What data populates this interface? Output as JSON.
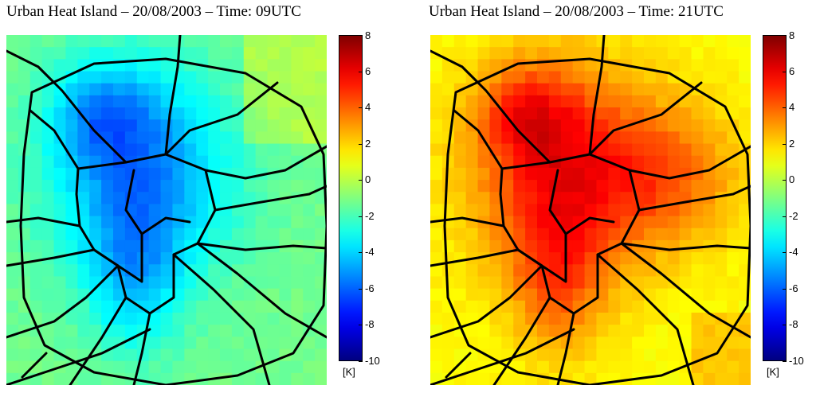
{
  "panels": [
    {
      "id": "left",
      "title": "Urban Heat Island – 20/08/2003 – Time: 09UTC",
      "colorbar": {
        "ticks": [
          "8",
          "6",
          "4",
          "2",
          "0",
          "-2",
          "-4",
          "-6",
          "-8",
          "-10"
        ],
        "unit": "[K]",
        "range": [
          -10,
          8
        ],
        "colormap": "jet"
      },
      "heat_anomaly_trend": "city center coolest (about -5 K), outskirts near -1 K"
    },
    {
      "id": "right",
      "title": "Urban Heat Island – 20/08/2003 – Time: 21UTC",
      "colorbar": {
        "ticks": [
          "8",
          "6",
          "4",
          "2",
          "0",
          "-2",
          "-4",
          "-6",
          "-8",
          "-10"
        ],
        "unit": "[K]",
        "range": [
          -10,
          8
        ],
        "colormap": "jet"
      },
      "heat_anomaly_trend": "city center warmest (about +5 K), outskirts near +1.5 K"
    }
  ],
  "colors": {
    "road": "#000000",
    "background": "#ffffff"
  }
}
